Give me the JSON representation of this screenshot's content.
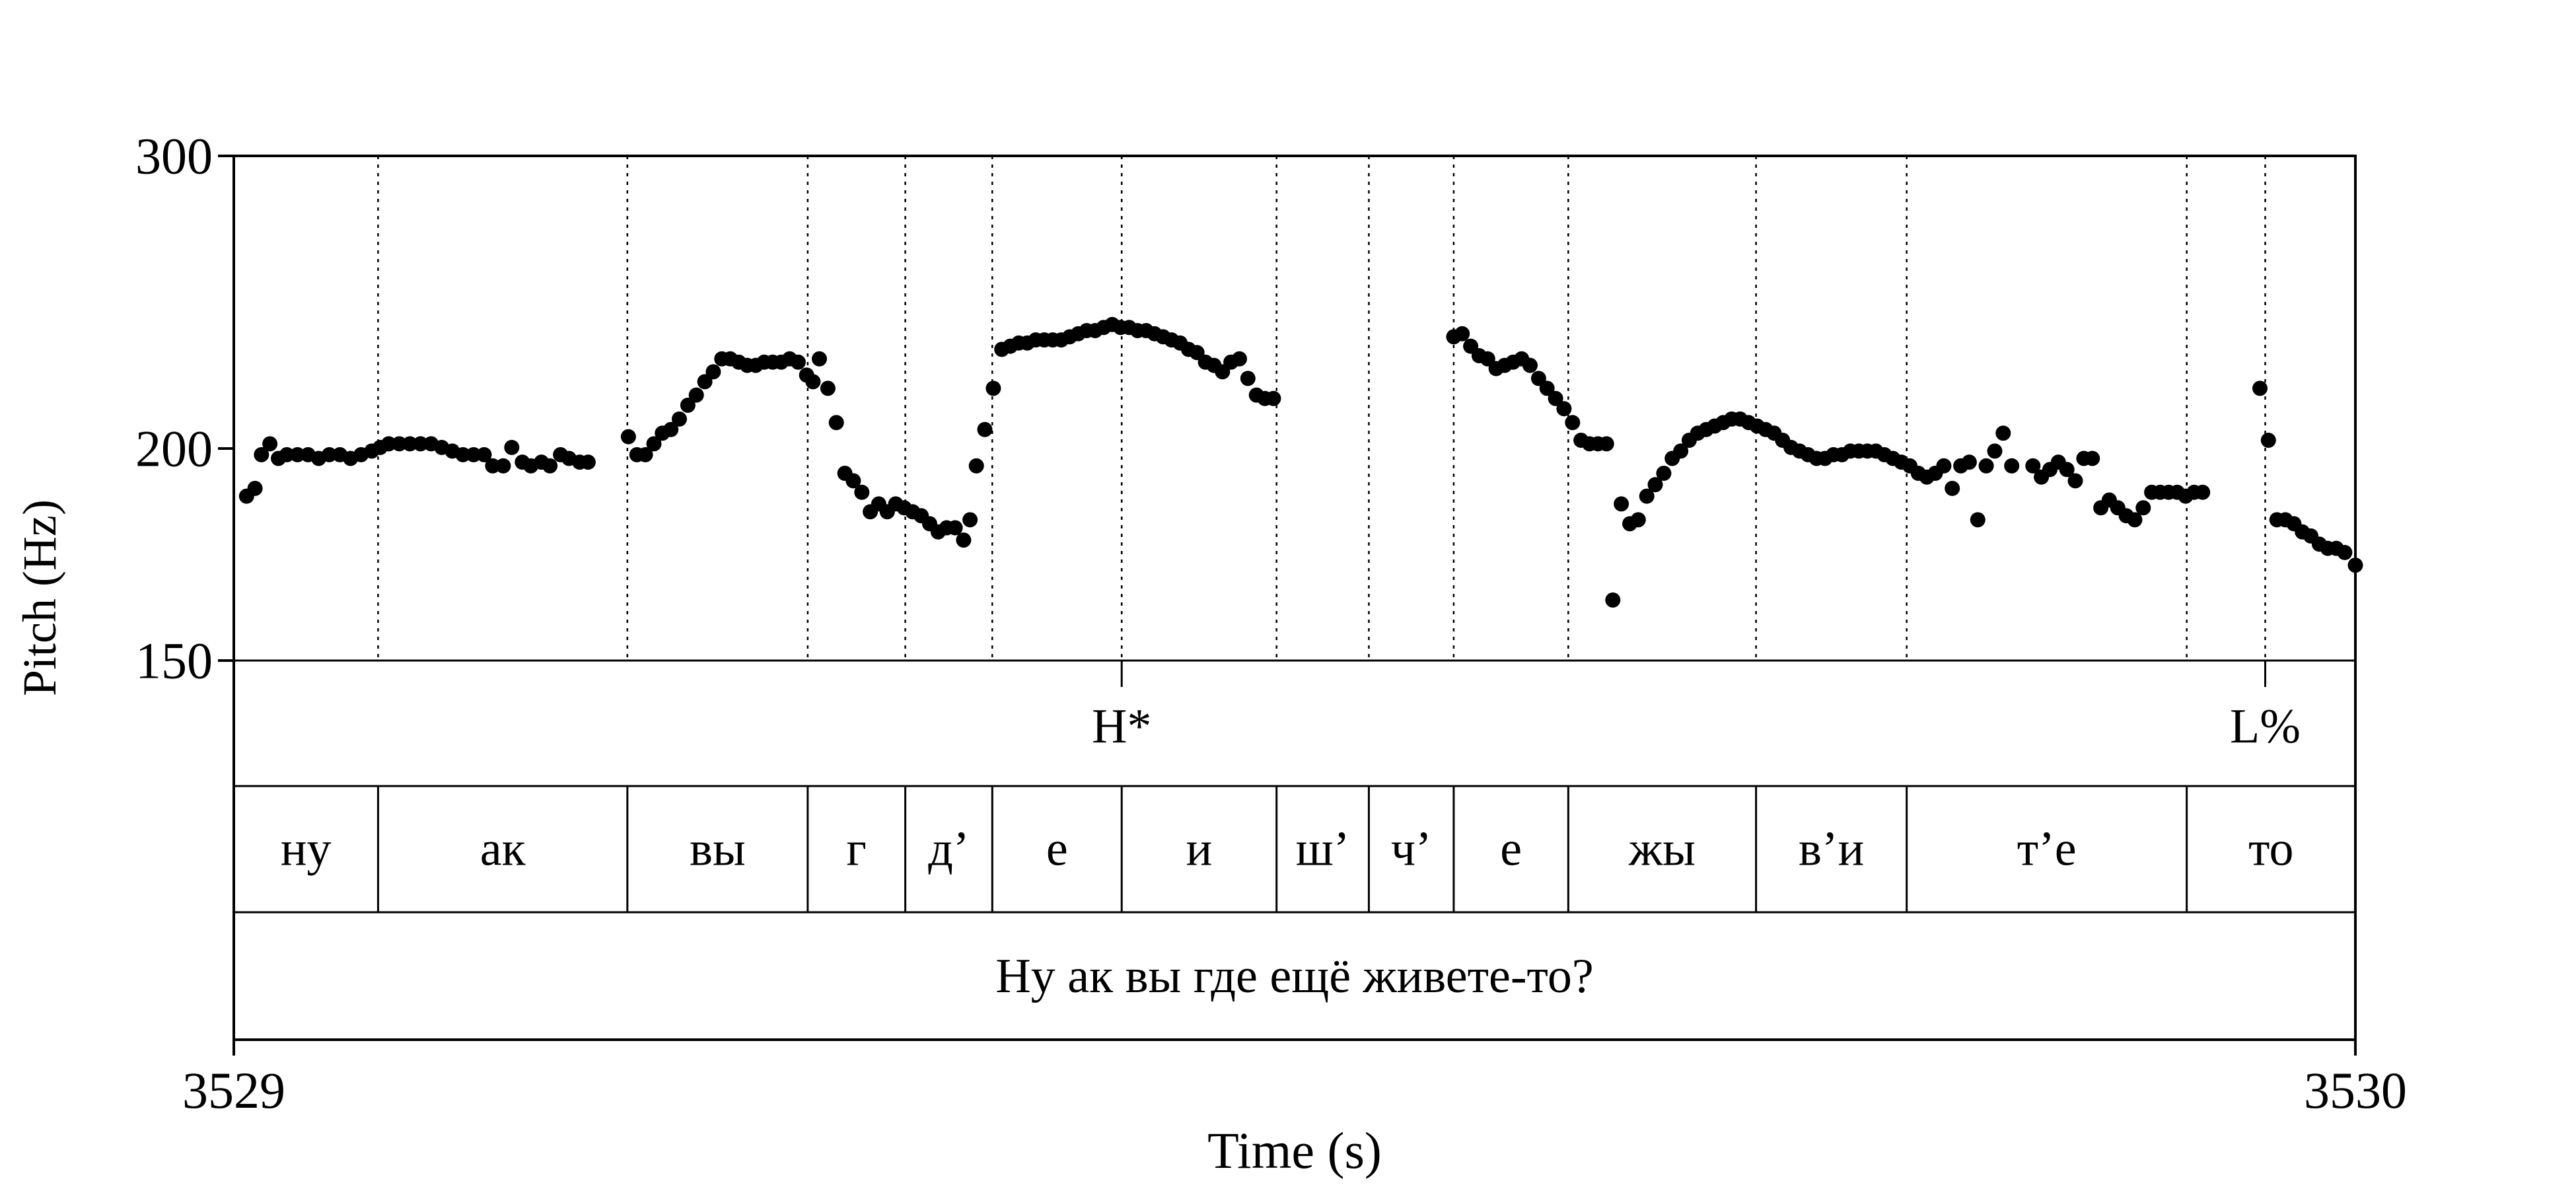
{
  "chart_data": {
    "type": "scatter",
    "xlabel": "Time (s)",
    "ylabel": "Pitch (Hz)",
    "xlim": [
      3529,
      3530
    ],
    "ylim": [
      150,
      300
    ],
    "log_y": true,
    "x_ticks": [
      "3529",
      "3530"
    ],
    "y_ticks": [
      "300",
      "200",
      "150"
    ],
    "y_tick_values": [
      300,
      200,
      150
    ],
    "grid": false,
    "tone_tier": [
      {
        "label": "H*",
        "time": 3529.4185
      },
      {
        "label": "L%",
        "time": 3529.9575
      }
    ],
    "syllable_tier": [
      {
        "label": "ну",
        "start": 3529.0,
        "end": 3529.068
      },
      {
        "label": "ак",
        "start": 3529.068,
        "end": 3529.1855
      },
      {
        "label": "вы",
        "start": 3529.1855,
        "end": 3529.2705
      },
      {
        "label": "г",
        "start": 3529.2705,
        "end": 3529.3165
      },
      {
        "label": "д’",
        "start": 3529.3165,
        "end": 3529.3575
      },
      {
        "label": "е",
        "start": 3529.3575,
        "end": 3529.4185
      },
      {
        "label": "и",
        "start": 3529.4185,
        "end": 3529.4915
      },
      {
        "label": "ш’",
        "start": 3529.4915,
        "end": 3529.535
      },
      {
        "label": "ч’",
        "start": 3529.535,
        "end": 3529.575
      },
      {
        "label": "е",
        "start": 3529.575,
        "end": 3529.629
      },
      {
        "label": "жы",
        "start": 3529.629,
        "end": 3529.7175
      },
      {
        "label": "в’и",
        "start": 3529.7175,
        "end": 3529.7885
      },
      {
        "label": "т’е",
        "start": 3529.7885,
        "end": 3529.9205
      },
      {
        "label": "то",
        "start": 3529.9205,
        "end": 3530.0
      }
    ],
    "sentence": "Ну ак вы где ещё живете-то?",
    "segments": [
      [
        [
          3529.006,
          188
        ],
        [
          3529.01,
          190
        ],
        [
          3529.013,
          199
        ],
        [
          3529.017,
          202
        ],
        [
          3529.021,
          198
        ],
        [
          3529.025,
          199
        ],
        [
          3529.03,
          199
        ],
        [
          3529.035,
          199
        ],
        [
          3529.04,
          198
        ],
        [
          3529.045,
          199
        ],
        [
          3529.05,
          199
        ],
        [
          3529.055,
          198
        ],
        [
          3529.06,
          199
        ],
        [
          3529.065,
          200
        ],
        [
          3529.069,
          201
        ],
        [
          3529.073,
          202
        ],
        [
          3529.078,
          202
        ],
        [
          3529.083,
          202
        ],
        [
          3529.088,
          202
        ],
        [
          3529.093,
          202
        ],
        [
          3529.098,
          201
        ],
        [
          3529.103,
          200
        ],
        [
          3529.108,
          199
        ],
        [
          3529.113,
          199
        ],
        [
          3529.118,
          199
        ],
        [
          3529.122,
          196
        ],
        [
          3529.127,
          196
        ],
        [
          3529.131,
          201
        ],
        [
          3529.136,
          197
        ],
        [
          3529.14,
          196
        ],
        [
          3529.145,
          197
        ],
        [
          3529.149,
          196
        ],
        [
          3529.154,
          199
        ],
        [
          3529.158,
          198
        ],
        [
          3529.163,
          197
        ],
        [
          3529.167,
          197
        ]
      ],
      [
        [
          3529.186,
          204
        ],
        [
          3529.19,
          199
        ],
        [
          3529.194,
          199
        ],
        [
          3529.198,
          202
        ],
        [
          3529.202,
          205
        ],
        [
          3529.206,
          206
        ],
        [
          3529.21,
          209
        ],
        [
          3529.214,
          213
        ],
        [
          3529.218,
          216
        ],
        [
          3529.222,
          220
        ],
        [
          3529.226,
          223
        ],
        [
          3529.23,
          227
        ],
        [
          3529.234,
          227
        ],
        [
          3529.238,
          226
        ],
        [
          3529.242,
          225
        ],
        [
          3529.246,
          225
        ],
        [
          3529.25,
          226
        ],
        [
          3529.254,
          226
        ],
        [
          3529.258,
          226
        ],
        [
          3529.262,
          227
        ],
        [
          3529.266,
          226
        ],
        [
          3529.27,
          222
        ],
        [
          3529.273,
          220
        ],
        [
          3529.276,
          227
        ],
        [
          3529.28,
          218
        ],
        [
          3529.284,
          208
        ],
        [
          3529.288,
          194
        ],
        [
          3529.292,
          192
        ],
        [
          3529.296,
          189
        ],
        [
          3529.3,
          184
        ],
        [
          3529.304,
          186
        ],
        [
          3529.308,
          184
        ],
        [
          3529.312,
          186
        ],
        [
          3529.316,
          185
        ],
        [
          3529.32,
          184
        ],
        [
          3529.324,
          183
        ],
        [
          3529.328,
          181
        ],
        [
          3529.332,
          179
        ],
        [
          3529.336,
          180
        ],
        [
          3529.34,
          180
        ],
        [
          3529.344,
          177
        ],
        [
          3529.347,
          182
        ]
      ],
      [
        [
          3529.35,
          196
        ],
        [
          3529.354,
          206
        ],
        [
          3529.358,
          218
        ],
        [
          3529.362,
          230
        ],
        [
          3529.366,
          231
        ],
        [
          3529.37,
          232
        ],
        [
          3529.374,
          232
        ],
        [
          3529.378,
          233
        ],
        [
          3529.382,
          233
        ],
        [
          3529.386,
          233
        ],
        [
          3529.39,
          233
        ],
        [
          3529.394,
          234
        ],
        [
          3529.398,
          235
        ],
        [
          3529.402,
          236
        ],
        [
          3529.406,
          236
        ],
        [
          3529.41,
          237
        ],
        [
          3529.414,
          238
        ],
        [
          3529.418,
          237
        ],
        [
          3529.422,
          237
        ],
        [
          3529.426,
          236
        ],
        [
          3529.43,
          236
        ],
        [
          3529.434,
          235
        ],
        [
          3529.438,
          234
        ],
        [
          3529.442,
          233
        ],
        [
          3529.446,
          232
        ],
        [
          3529.45,
          230
        ],
        [
          3529.454,
          229
        ],
        [
          3529.458,
          226
        ],
        [
          3529.462,
          225
        ],
        [
          3529.466,
          223
        ],
        [
          3529.47,
          226
        ],
        [
          3529.474,
          227
        ],
        [
          3529.478,
          221
        ],
        [
          3529.482,
          216
        ],
        [
          3529.486,
          215
        ],
        [
          3529.49,
          215
        ]
      ],
      [
        [
          3529.575,
          234
        ],
        [
          3529.579,
          235
        ],
        [
          3529.583,
          231
        ],
        [
          3529.587,
          228
        ],
        [
          3529.591,
          227
        ],
        [
          3529.595,
          224
        ],
        [
          3529.599,
          225
        ],
        [
          3529.603,
          226
        ],
        [
          3529.607,
          227
        ],
        [
          3529.611,
          225
        ],
        [
          3529.615,
          221
        ],
        [
          3529.619,
          218
        ],
        [
          3529.623,
          215
        ],
        [
          3529.627,
          212
        ],
        [
          3529.631,
          208
        ],
        [
          3529.635,
          203
        ],
        [
          3529.639,
          202
        ],
        [
          3529.643,
          202
        ],
        [
          3529.647,
          202
        ]
      ],
      [
        [
          3529.65,
          163
        ],
        [
          3529.654,
          186
        ],
        [
          3529.658,
          181
        ],
        [
          3529.662,
          182
        ],
        [
          3529.666,
          188
        ],
        [
          3529.67,
          191
        ],
        [
          3529.674,
          194
        ],
        [
          3529.678,
          198
        ],
        [
          3529.682,
          200
        ],
        [
          3529.686,
          203
        ],
        [
          3529.69,
          205
        ],
        [
          3529.694,
          206
        ],
        [
          3529.698,
          207
        ],
        [
          3529.702,
          208
        ],
        [
          3529.706,
          209
        ],
        [
          3529.71,
          209
        ],
        [
          3529.714,
          208
        ],
        [
          3529.718,
          207
        ],
        [
          3529.722,
          206
        ],
        [
          3529.726,
          205
        ],
        [
          3529.73,
          203
        ],
        [
          3529.734,
          201
        ],
        [
          3529.738,
          200
        ],
        [
          3529.742,
          199
        ],
        [
          3529.746,
          198
        ],
        [
          3529.75,
          198
        ],
        [
          3529.754,
          199
        ],
        [
          3529.758,
          199
        ],
        [
          3529.762,
          200
        ],
        [
          3529.766,
          200
        ],
        [
          3529.77,
          200
        ],
        [
          3529.774,
          200
        ],
        [
          3529.778,
          199
        ],
        [
          3529.782,
          198
        ],
        [
          3529.786,
          197
        ],
        [
          3529.79,
          196
        ],
        [
          3529.794,
          194
        ],
        [
          3529.798,
          193
        ],
        [
          3529.802,
          194
        ],
        [
          3529.806,
          196
        ],
        [
          3529.81,
          190
        ],
        [
          3529.814,
          196
        ],
        [
          3529.818,
          197
        ],
        [
          3529.822,
          182
        ],
        [
          3529.826,
          196
        ],
        [
          3529.83,
          200
        ],
        [
          3529.834,
          205
        ],
        [
          3529.838,
          196
        ]
      ],
      [
        [
          3529.848,
          196
        ],
        [
          3529.852,
          193
        ],
        [
          3529.856,
          195
        ],
        [
          3529.86,
          197
        ],
        [
          3529.864,
          195
        ],
        [
          3529.868,
          192
        ],
        [
          3529.872,
          198
        ],
        [
          3529.876,
          198
        ],
        [
          3529.88,
          185
        ],
        [
          3529.884,
          187
        ],
        [
          3529.888,
          185
        ],
        [
          3529.892,
          183
        ],
        [
          3529.896,
          182
        ],
        [
          3529.9,
          185
        ],
        [
          3529.904,
          189
        ],
        [
          3529.908,
          189
        ],
        [
          3529.912,
          189
        ],
        [
          3529.916,
          189
        ],
        [
          3529.92,
          188
        ],
        [
          3529.924,
          189
        ],
        [
          3529.928,
          189
        ]
      ],
      [
        [
          3529.955,
          218
        ],
        [
          3529.959,
          203
        ],
        [
          3529.963,
          182
        ],
        [
          3529.967,
          182
        ],
        [
          3529.971,
          181
        ],
        [
          3529.975,
          179
        ],
        [
          3529.979,
          178
        ],
        [
          3529.983,
          176
        ],
        [
          3529.987,
          175
        ],
        [
          3529.991,
          175
        ],
        [
          3529.995,
          174
        ],
        [
          3530.0,
          171
        ]
      ]
    ]
  }
}
